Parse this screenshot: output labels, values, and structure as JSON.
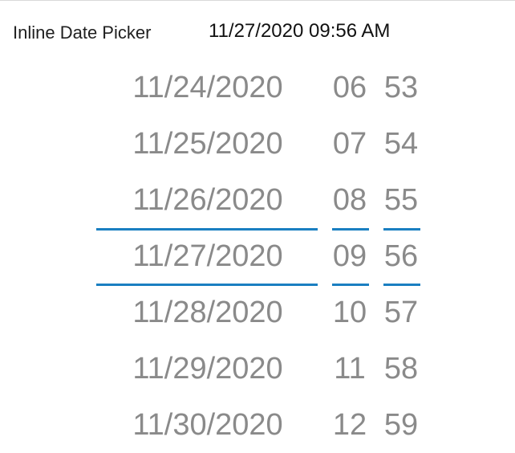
{
  "header": {
    "label": "Inline Date Picker",
    "value": "11/27/2020 09:56 AM"
  },
  "picker": {
    "dates": [
      "11/24/2020",
      "11/25/2020",
      "11/26/2020",
      "11/27/2020",
      "11/28/2020",
      "11/29/2020",
      "11/30/2020"
    ],
    "hours": [
      "06",
      "07",
      "08",
      "09",
      "10",
      "11",
      "12"
    ],
    "minutes": [
      "53",
      "54",
      "55",
      "56",
      "57",
      "58",
      "59"
    ],
    "selected_index": 3
  },
  "colors": {
    "accent": "#1a7fc1",
    "item_text": "#8a8a8a",
    "header_text": "#111111"
  }
}
